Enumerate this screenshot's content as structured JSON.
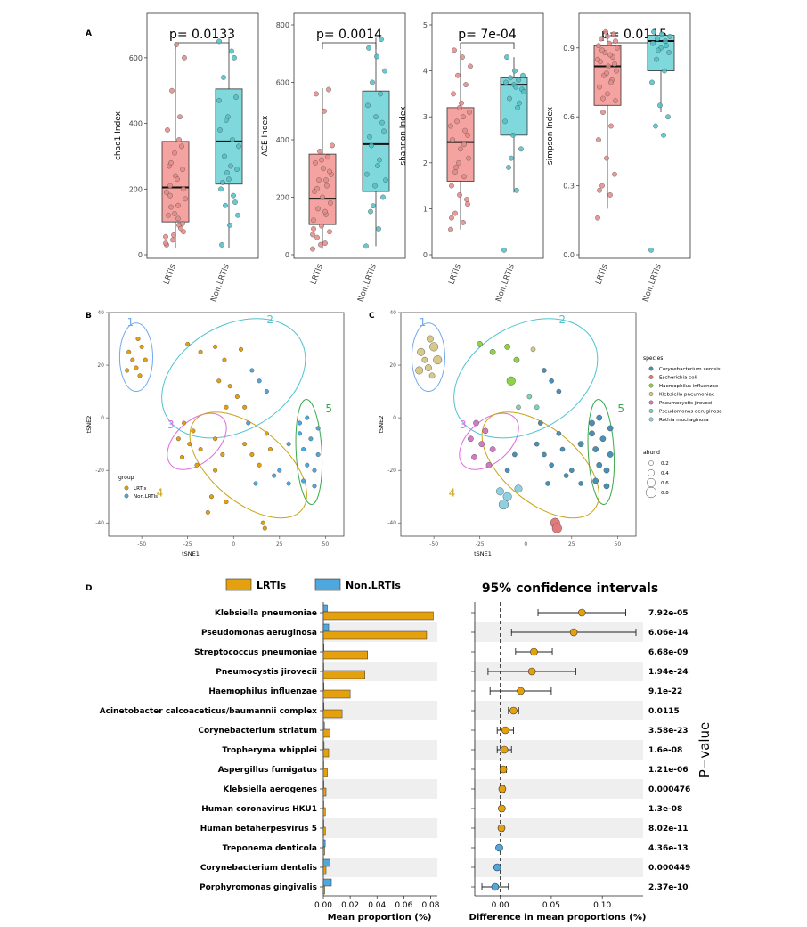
{
  "colors": {
    "lrtis": "#f4a3a0",
    "nonlrtis": "#7fd8dc",
    "lrtis_point": "#e38a86",
    "nonlrtis_point": "#4fc0c6",
    "orange": "#e5a00d",
    "blue": "#4fa8dd",
    "stripe": "#efefef",
    "cluster1": "#6fa8f0",
    "cluster2": "#4fc3d0",
    "cluster3": "#e06ae0",
    "cluster4": "#c9a418",
    "cluster5": "#3aa84c"
  },
  "panel_labels": {
    "a": "A",
    "b": "B",
    "c": "C",
    "d": "D"
  },
  "chart_data": [
    {
      "type": "box",
      "id": "chao1",
      "title": "p= 0.0133",
      "ylabel": "chao1 Index",
      "ylim": [
        0,
        700
      ],
      "yticks": [
        0,
        200,
        400,
        600
      ],
      "categories": [
        "LRTIs",
        "Non.LRTIs"
      ],
      "boxes": [
        {
          "q1": 100,
          "median": 205,
          "q3": 345,
          "low": 20,
          "high": 640
        },
        {
          "q1": 215,
          "median": 345,
          "q3": 505,
          "low": 20,
          "high": 660
        }
      ],
      "points": [
        [
          55,
          110,
          180,
          260,
          310,
          30,
          90,
          145,
          200,
          240,
          380,
          420,
          500,
          600,
          640,
          120,
          80,
          45,
          170,
          230,
          270,
          330,
          60,
          35,
          150,
          210,
          95,
          125,
          190,
          350,
          280,
          70
        ],
        [
          650,
          620,
          540,
          480,
          420,
          380,
          350,
          300,
          260,
          230,
          200,
          180,
          150,
          120,
          90,
          30,
          600,
          410,
          330,
          270,
          220,
          160,
          250,
          470
        ]
      ]
    },
    {
      "type": "box",
      "id": "ace",
      "title": "p= 0.0014",
      "ylabel": "ACE Index",
      "ylim": [
        0,
        800
      ],
      "yticks": [
        0,
        200,
        400,
        600,
        800
      ],
      "categories": [
        "LRTIs",
        "Non.LRTIs"
      ],
      "boxes": [
        {
          "q1": 105,
          "median": 195,
          "q3": 350,
          "low": 20,
          "high": 580
        },
        {
          "q1": 220,
          "median": 385,
          "q3": 570,
          "low": 30,
          "high": 755
        }
      ],
      "points": [
        [
          20,
          40,
          60,
          80,
          100,
          120,
          140,
          160,
          180,
          200,
          220,
          240,
          260,
          280,
          300,
          320,
          340,
          360,
          380,
          500,
          560,
          575,
          35,
          70,
          150,
          230,
          290,
          330,
          90,
          260
        ],
        [
          30,
          90,
          150,
          200,
          240,
          280,
          330,
          380,
          430,
          480,
          520,
          560,
          600,
          640,
          690,
          720,
          750,
          170,
          260,
          310,
          410,
          460
        ]
      ]
    },
    {
      "type": "box",
      "id": "shannon",
      "title": "p= 7e-04",
      "ylabel": "shannon Index",
      "ylim": [
        0,
        5
      ],
      "yticks": [
        0,
        1,
        2,
        3,
        4,
        5
      ],
      "categories": [
        "LRTIs",
        "Non.LRTIs"
      ],
      "boxes": [
        {
          "q1": 1.6,
          "median": 2.45,
          "q3": 3.2,
          "low": 0.55,
          "high": 4.45
        },
        {
          "q1": 2.6,
          "median": 3.7,
          "q3": 3.85,
          "low": 1.35,
          "high": 4.3
        }
      ],
      "points": [
        [
          0.55,
          0.7,
          0.9,
          1.1,
          1.3,
          1.5,
          1.7,
          1.9,
          2.1,
          2.3,
          2.5,
          2.7,
          2.9,
          3.1,
          3.3,
          3.5,
          3.7,
          3.9,
          4.1,
          4.3,
          4.45,
          1.2,
          2.0,
          2.8,
          3.0,
          1.8,
          2.6,
          3.2,
          0.8,
          2.4
        ],
        [
          0.1,
          1.4,
          1.9,
          2.3,
          2.6,
          2.9,
          3.2,
          3.4,
          3.6,
          3.7,
          3.75,
          3.8,
          3.85,
          3.9,
          4.0,
          4.3,
          3.3,
          2.1,
          3.55,
          3.65
        ]
      ]
    },
    {
      "type": "box",
      "id": "simpson",
      "title": "p= 0.0115",
      "ylabel": "simpson Index",
      "ylim": [
        0,
        1
      ],
      "yticks": [
        0.0,
        0.3,
        0.6,
        0.9
      ],
      "categories": [
        "LRTIs",
        "Non.LRTIs"
      ],
      "boxes": [
        {
          "q1": 0.65,
          "median": 0.82,
          "q3": 0.91,
          "low": 0.2,
          "high": 0.97
        },
        {
          "q1": 0.8,
          "median": 0.93,
          "q3": 0.955,
          "low": 0.62,
          "high": 0.97
        }
      ],
      "points": [
        [
          0.16,
          0.26,
          0.3,
          0.35,
          0.42,
          0.5,
          0.56,
          0.62,
          0.67,
          0.7,
          0.73,
          0.76,
          0.78,
          0.8,
          0.82,
          0.84,
          0.86,
          0.88,
          0.9,
          0.92,
          0.94,
          0.96,
          0.97,
          0.85,
          0.87,
          0.89,
          0.83,
          0.79,
          0.91,
          0.75,
          0.68,
          0.93,
          0.95,
          0.28
        ],
        [
          0.02,
          0.52,
          0.56,
          0.6,
          0.65,
          0.75,
          0.8,
          0.85,
          0.88,
          0.9,
          0.92,
          0.93,
          0.94,
          0.95,
          0.96,
          0.97,
          0.91,
          0.89
        ]
      ]
    },
    {
      "type": "scatter",
      "id": "tsne_group",
      "xlabel": "tSNE1",
      "ylabel": "tSNE2",
      "xlim": [
        -68,
        60
      ],
      "ylim": [
        -45,
        40
      ],
      "xticks": [
        -50,
        -25,
        0,
        25,
        50
      ],
      "yticks": [
        -40,
        -20,
        0,
        20,
        40
      ],
      "legend": {
        "title": "group",
        "entries": [
          "LRTIs",
          "Non.LRTIs"
        ]
      },
      "clusters": [
        "1",
        "2",
        "3",
        "4",
        "5"
      ],
      "points": [
        [
          -57,
          25,
          0
        ],
        [
          -52,
          30,
          0
        ],
        [
          -50,
          27,
          0
        ],
        [
          -55,
          22,
          0
        ],
        [
          -58,
          18,
          0
        ],
        [
          -53,
          19,
          0
        ],
        [
          -48,
          22,
          0
        ],
        [
          -51,
          16,
          0
        ],
        [
          -25,
          28,
          0
        ],
        [
          -18,
          25,
          0
        ],
        [
          -10,
          27,
          0
        ],
        [
          -5,
          22,
          0
        ],
        [
          -8,
          14,
          0
        ],
        [
          -2,
          12,
          0
        ],
        [
          4,
          26,
          0
        ],
        [
          2,
          8,
          0
        ],
        [
          6,
          4,
          0
        ],
        [
          -4,
          4,
          0
        ],
        [
          10,
          18,
          1
        ],
        [
          14,
          14,
          1
        ],
        [
          18,
          10,
          1
        ],
        [
          8,
          -2,
          1
        ],
        [
          -27,
          -2,
          0
        ],
        [
          -22,
          -5,
          0
        ],
        [
          -30,
          -8,
          0
        ],
        [
          -24,
          -10,
          0
        ],
        [
          -18,
          -12,
          0
        ],
        [
          -28,
          -15,
          0
        ],
        [
          -20,
          -18,
          0
        ],
        [
          -10,
          -20,
          0
        ],
        [
          -6,
          -14,
          0
        ],
        [
          -10,
          -8,
          0
        ],
        [
          -12,
          -30,
          0
        ],
        [
          -14,
          -36,
          0
        ],
        [
          -4,
          -32,
          0
        ],
        [
          6,
          -10,
          0
        ],
        [
          10,
          -14,
          0
        ],
        [
          14,
          -18,
          0
        ],
        [
          18,
          -6,
          0
        ],
        [
          20,
          -12,
          0
        ],
        [
          25,
          -20,
          1
        ],
        [
          22,
          -22,
          1
        ],
        [
          12,
          -25,
          1
        ],
        [
          30,
          -25,
          1
        ],
        [
          16,
          -40,
          0
        ],
        [
          17,
          -42,
          0
        ],
        [
          36,
          -2,
          1
        ],
        [
          40,
          0,
          1
        ],
        [
          46,
          -4,
          1
        ],
        [
          42,
          -8,
          1
        ],
        [
          38,
          -12,
          1
        ],
        [
          46,
          -14,
          1
        ],
        [
          40,
          -18,
          1
        ],
        [
          44,
          -20,
          1
        ],
        [
          38,
          -24,
          1
        ],
        [
          44,
          -26,
          1
        ],
        [
          36,
          -6,
          1
        ],
        [
          30,
          -10,
          1
        ]
      ]
    },
    {
      "type": "scatter",
      "id": "tsne_species",
      "xlabel": "tSNE1",
      "ylabel": "tSNE2",
      "xlim": [
        -68,
        60
      ],
      "ylim": [
        -45,
        40
      ],
      "xticks": [
        -50,
        -25,
        0,
        25,
        50
      ],
      "yticks": [
        -40,
        -20,
        0,
        20,
        40
      ],
      "legend": {
        "title": "species",
        "entries": [
          "Corynebacterium xerosis",
          "Escherichia coli",
          "Haemophilus influenzae",
          "Klebsiella pneumoniae",
          "Pneumocystis jirovecii",
          "Pseudomonas aeruginosa",
          "Rothia mucilaginosa"
        ],
        "colors": [
          "#4a8fb4",
          "#e07b7b",
          "#8ed14a",
          "#d6c98a",
          "#d07cc4",
          "#7fd3b0",
          "#8fd0e0"
        ],
        "size_title": "abund",
        "size_values": [
          0.2,
          0.4,
          0.6,
          0.8
        ]
      },
      "clusters": [
        "1",
        "2",
        "3",
        "4",
        "5"
      ],
      "points": [
        [
          -57,
          25,
          3,
          0.5
        ],
        [
          -52,
          30,
          3,
          0.4
        ],
        [
          -50,
          27,
          3,
          0.6
        ],
        [
          -55,
          22,
          3,
          0.3
        ],
        [
          -58,
          18,
          3,
          0.5
        ],
        [
          -53,
          19,
          3,
          0.4
        ],
        [
          -48,
          22,
          3,
          0.6
        ],
        [
          -51,
          16,
          3,
          0.3
        ],
        [
          -25,
          28,
          2,
          0.3
        ],
        [
          -18,
          25,
          2,
          0.3
        ],
        [
          -10,
          27,
          2,
          0.3
        ],
        [
          -5,
          22,
          2,
          0.3
        ],
        [
          -8,
          14,
          2,
          0.6
        ],
        [
          4,
          26,
          3,
          0.2
        ],
        [
          2,
          8,
          5,
          0.2
        ],
        [
          6,
          4,
          5,
          0.2
        ],
        [
          -4,
          4,
          5,
          0.2
        ],
        [
          10,
          18,
          0,
          0.2
        ],
        [
          14,
          14,
          0,
          0.2
        ],
        [
          18,
          10,
          0,
          0.2
        ],
        [
          8,
          -2,
          0,
          0.2
        ],
        [
          -27,
          -2,
          4,
          0.3
        ],
        [
          -22,
          -5,
          4,
          0.3
        ],
        [
          -30,
          -8,
          4,
          0.3
        ],
        [
          -24,
          -10,
          4,
          0.3
        ],
        [
          -18,
          -12,
          4,
          0.3
        ],
        [
          -28,
          -15,
          4,
          0.3
        ],
        [
          -20,
          -18,
          4,
          0.3
        ],
        [
          -10,
          -20,
          0,
          0.2
        ],
        [
          -6,
          -14,
          0,
          0.2
        ],
        [
          -10,
          -30,
          6,
          0.6
        ],
        [
          -12,
          -33,
          6,
          0.7
        ],
        [
          -14,
          -28,
          6,
          0.5
        ],
        [
          -4,
          -27,
          6,
          0.5
        ],
        [
          6,
          -10,
          0,
          0.2
        ],
        [
          10,
          -14,
          0,
          0.2
        ],
        [
          14,
          -18,
          0,
          0.2
        ],
        [
          18,
          -6,
          0,
          0.2
        ],
        [
          20,
          -12,
          0,
          0.2
        ],
        [
          25,
          -20,
          0,
          0.2
        ],
        [
          22,
          -22,
          0,
          0.2
        ],
        [
          12,
          -25,
          0,
          0.2
        ],
        [
          30,
          -25,
          0,
          0.2
        ],
        [
          16,
          -40,
          1,
          0.7
        ],
        [
          17,
          -42,
          1,
          0.7
        ],
        [
          36,
          -2,
          0,
          0.3
        ],
        [
          40,
          0,
          0,
          0.3
        ],
        [
          46,
          -4,
          0,
          0.3
        ],
        [
          42,
          -8,
          0,
          0.3
        ],
        [
          38,
          -12,
          0,
          0.3
        ],
        [
          46,
          -14,
          0,
          0.3
        ],
        [
          40,
          -18,
          0,
          0.3
        ],
        [
          44,
          -20,
          0,
          0.3
        ],
        [
          38,
          -24,
          0,
          0.3
        ],
        [
          44,
          -26,
          0,
          0.3
        ],
        [
          36,
          -6,
          0,
          0.3
        ],
        [
          30,
          -10,
          0,
          0.3
        ]
      ]
    },
    {
      "type": "bar",
      "id": "mean_proportion",
      "xlabel": "Mean proportion (%)",
      "xlim": [
        0,
        0.085
      ],
      "xticks": [
        0.0,
        0.02,
        0.04,
        0.06,
        0.08
      ],
      "legend": [
        "LRTIs",
        "Non.LRTIs"
      ],
      "categories": [
        "Klebsiella pneumoniae",
        "Pseudomonas aeruginosa",
        "Streptococcus pneumoniae",
        "Pneumocystis jirovecii",
        "Haemophilus influenzae",
        "Acinetobacter calcoaceticus/baumannii complex",
        "Corynebacterium striatum",
        "Tropheryma whipplei",
        "Aspergillus fumigatus",
        "Klebsiella aerogenes",
        "Human coronavirus HKU1",
        "Human betaherpesvirus 5",
        "Treponema denticola",
        "Corynebacterium dentalis",
        "Porphyromonas gingivalis"
      ],
      "series": [
        {
          "name": "LRTIs",
          "values": [
            0.082,
            0.077,
            0.033,
            0.031,
            0.02,
            0.014,
            0.005,
            0.004,
            0.003,
            0.002,
            0.0015,
            0.0015,
            0.001,
            0.002,
            0.001
          ]
        },
        {
          "name": "Non.LRTIs",
          "values": [
            0.003,
            0.004,
            0.0005,
            0.0003,
            0.0005,
            0.0005,
            0.0008,
            0.0006,
            0.0003,
            0.0004,
            0.0003,
            0.0003,
            0.0014,
            0.005,
            0.006
          ]
        }
      ]
    },
    {
      "type": "errorbar",
      "id": "ci",
      "title": "95% confidence intervals",
      "xlabel": "Difference in mean proportions (%)",
      "xlim": [
        -0.025,
        0.14
      ],
      "xticks": [
        0.0,
        0.05,
        0.1
      ],
      "side_label": "P−value",
      "estimates": [
        0.08,
        0.072,
        0.033,
        0.031,
        0.02,
        0.013,
        0.005,
        0.004,
        0.003,
        0.002,
        0.0015,
        0.0012,
        -0.001,
        -0.003,
        -0.005
      ],
      "lower": [
        0.037,
        0.011,
        0.015,
        -0.012,
        -0.01,
        0.008,
        -0.003,
        -0.003,
        0.0,
        0.0,
        0.0,
        0.0,
        -0.002,
        -0.004,
        -0.018
      ],
      "upper": [
        0.123,
        0.133,
        0.051,
        0.074,
        0.05,
        0.018,
        0.013,
        0.011,
        0.006,
        0.004,
        0.003,
        0.003,
        0.0,
        -0.002,
        0.008
      ],
      "pvalues": [
        "7.92e-05",
        "6.06e-14",
        "6.68e-09",
        "1.94e-24",
        "9.1e-22",
        "0.0115",
        "3.58e-23",
        "1.6e-08",
        "1.21e-06",
        "0.000476",
        "1.3e-08",
        "8.02e-11",
        "4.36e-13",
        "0.000449",
        "2.37e-10"
      ]
    }
  ]
}
